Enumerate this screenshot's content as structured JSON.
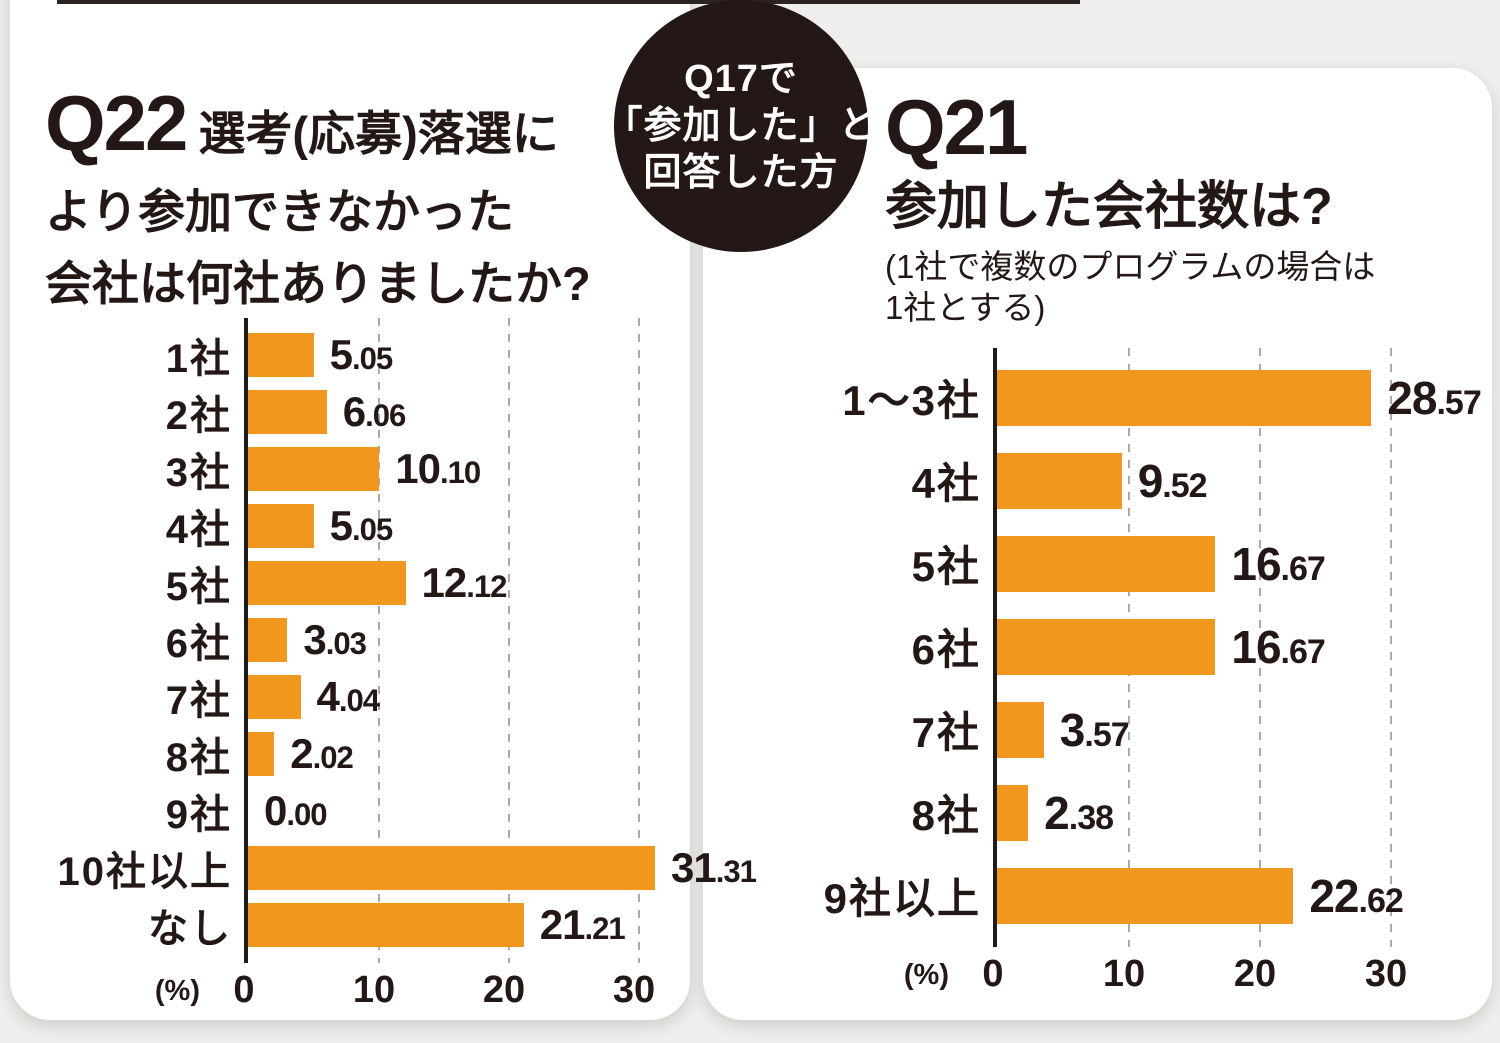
{
  "page": {
    "badge": {
      "lines": [
        "Q17で",
        "「参加した」と",
        "回答した方"
      ]
    },
    "colors": {
      "bar": "#f2971e",
      "ink": "#231815",
      "badge_bg": "#231815",
      "grid": "#ababab",
      "card_bg": "#ffffff",
      "page_bg": "#efeeec"
    }
  },
  "chart_data": [
    {
      "type": "bar",
      "orientation": "horizontal",
      "label": "Q22",
      "title": "選考(応募)落選により参加できなかった会社は何社ありましたか?",
      "title_lines": [
        "選考(応募)落選に",
        "より参加できなかった",
        "会社は何社ありましたか?"
      ],
      "categories": [
        "1社",
        "2社",
        "3社",
        "4社",
        "5社",
        "6社",
        "7社",
        "8社",
        "9社",
        "10社以上",
        "なし"
      ],
      "values": [
        5.05,
        6.06,
        10.1,
        5.05,
        12.12,
        3.03,
        4.04,
        2.02,
        0.0,
        31.31,
        21.21
      ],
      "value_labels": [
        "5.05",
        "6.06",
        "10.10",
        "5.05",
        "12.12",
        "3.03",
        "4.04",
        "2.02",
        "0.00",
        "31.31",
        "21.21"
      ],
      "xlabel": "(%)",
      "ticks": [
        0,
        10,
        20,
        30
      ],
      "xlim": [
        0,
        34
      ],
      "grid": "dashed-vertical",
      "legend": "none"
    },
    {
      "type": "bar",
      "orientation": "horizontal",
      "label": "Q21",
      "title": "参加した会社数は?",
      "subtitle_lines": [
        "(1社で複数のプログラムの場合は",
        "1社とする)"
      ],
      "categories": [
        "1〜3社",
        "4社",
        "5社",
        "6社",
        "7社",
        "8社",
        "9社以上"
      ],
      "values": [
        28.57,
        9.52,
        16.67,
        16.67,
        3.57,
        2.38,
        22.62
      ],
      "value_labels": [
        "28.57",
        "9.52",
        "16.67",
        "16.67",
        "3.57",
        "2.38",
        "22.62"
      ],
      "xlabel": "(%)",
      "ticks": [
        0,
        10,
        20,
        30
      ],
      "xlim": [
        0,
        34
      ],
      "grid": "dashed-vertical",
      "legend": "none"
    }
  ]
}
